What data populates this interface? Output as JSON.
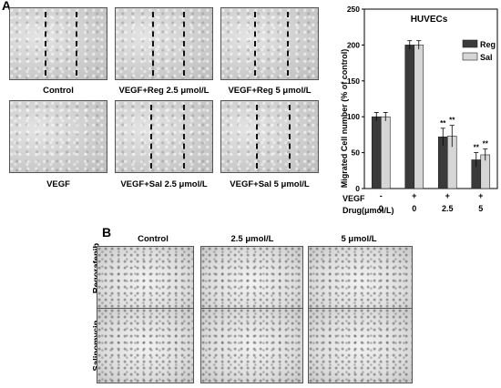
{
  "panels": {
    "a_letter": "A",
    "b_letter": "B"
  },
  "migration_images": {
    "row1": [
      "Control",
      "VEGF+Reg 2.5 μmol/L",
      "VEGF+Reg 5 μmol/L"
    ],
    "row2": [
      "VEGF",
      "VEGF+Sal 2.5 μmol/L",
      "VEGF+Sal 5 μmol/L"
    ]
  },
  "tube_images": {
    "col_headers": [
      "Control",
      "2.5 μmol/L",
      "5 μmol/L"
    ],
    "row_labels": [
      "Regorafenib",
      "Salinomycin"
    ]
  },
  "chart_data": {
    "type": "bar",
    "title": "HUVECs",
    "ylabel": "Migrated Cell number (% of control)",
    "ylim": [
      0,
      250
    ],
    "yticks": [
      0,
      50,
      100,
      150,
      200,
      250
    ],
    "categories": [
      "-|0",
      "+|0",
      "+|2.5",
      "+|5"
    ],
    "row_labels": [
      "VEGF",
      "Drug(μmol/L)"
    ],
    "vegf_row": [
      "-",
      "+",
      "+",
      "+"
    ],
    "drug_row": [
      "0",
      "0",
      "2.5",
      "5"
    ],
    "series": [
      {
        "name": "Reg",
        "values": [
          100,
          200,
          72,
          40
        ],
        "errors": [
          6,
          6,
          12,
          10
        ],
        "color": "#3a3a3a"
      },
      {
        "name": "Sal",
        "values": [
          100,
          200,
          73,
          47
        ],
        "errors": [
          6,
          6,
          15,
          8
        ],
        "color": "#d6d6d6"
      }
    ],
    "annotations": [
      "**",
      "**",
      "**",
      "**"
    ],
    "legend_position": "top-right"
  }
}
